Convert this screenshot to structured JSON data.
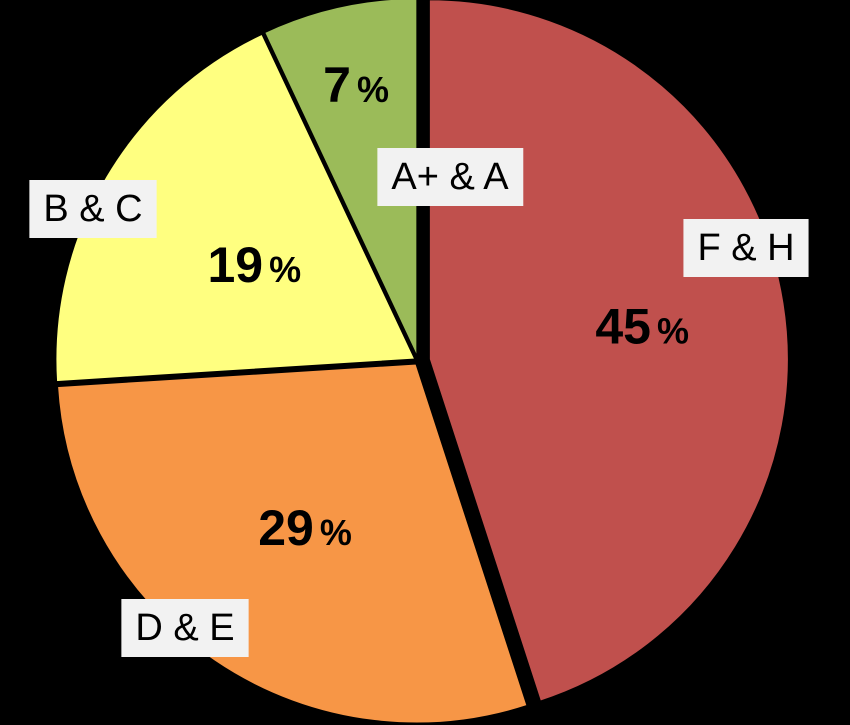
{
  "chart_data": {
    "type": "pie",
    "start_angle_deg": 0,
    "direction": "clockwise",
    "exploded_gaps": true,
    "slices": [
      {
        "label": "F & H",
        "value": 45,
        "value_label": "45",
        "unit": "%",
        "color": "#c0504d"
      },
      {
        "label": "D & E",
        "value": 29,
        "value_label": "29",
        "unit": "%",
        "color": "#f79646"
      },
      {
        "label": "B & C",
        "value": 19,
        "value_label": "19",
        "unit": "%",
        "color": "#ffff80"
      },
      {
        "label": "A+ & A",
        "value": 7,
        "value_label": "7",
        "unit": "%",
        "color": "#9bbb59"
      }
    ],
    "background": "#000000",
    "label_box_color": "#f2f2f2"
  }
}
